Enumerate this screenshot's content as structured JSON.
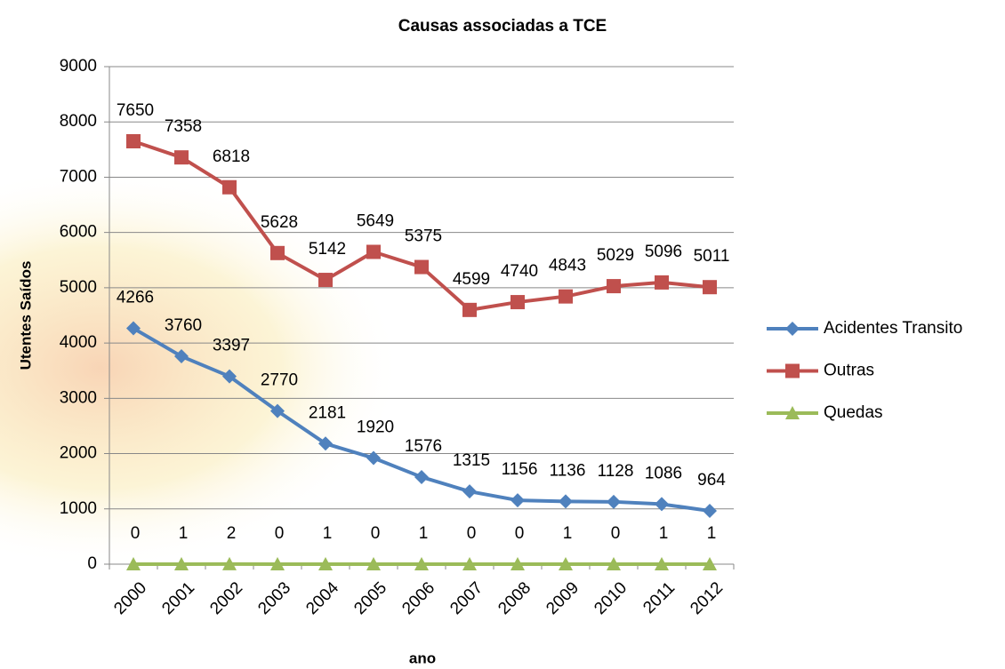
{
  "chart_data": {
    "type": "line",
    "title": "Causas associadas a TCE",
    "x_label": "ano",
    "y_label": "Utentes Saídos",
    "categories": [
      "2000",
      "2001",
      "2002",
      "2003",
      "2004",
      "2005",
      "2006",
      "2007",
      "2008",
      "2009",
      "2010",
      "2011",
      "2012"
    ],
    "series": [
      {
        "name": "Acidentes Transito",
        "color": "#4f81bd",
        "marker": "diamond",
        "values": [
          4266,
          3760,
          3397,
          2770,
          2181,
          1920,
          1576,
          1315,
          1156,
          1136,
          1128,
          1086,
          964
        ]
      },
      {
        "name": "Outras",
        "color": "#c0504d",
        "marker": "square",
        "values": [
          7650,
          7358,
          6818,
          5628,
          5142,
          5649,
          5375,
          4599,
          4740,
          4843,
          5029,
          5096,
          5011
        ]
      },
      {
        "name": "Quedas",
        "color": "#9bbb59",
        "marker": "triangle",
        "values": [
          0,
          1,
          2,
          0,
          1,
          0,
          1,
          0,
          0,
          1,
          0,
          1,
          1
        ]
      }
    ],
    "ylim": [
      0,
      9000
    ],
    "yticks": [
      0,
      1000,
      2000,
      3000,
      4000,
      5000,
      6000,
      7000,
      8000,
      9000
    ],
    "grid": true,
    "legend": "right",
    "data_labels": true
  }
}
